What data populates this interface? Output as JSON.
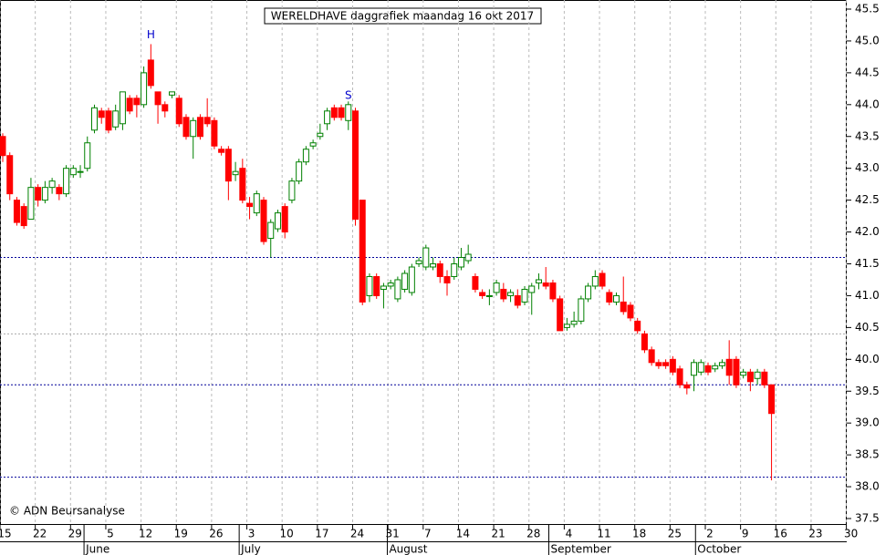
{
  "chart_data": {
    "type": "candlestick",
    "title": "WERELDHAVE daggrafiek maandag 16 okt 2017",
    "copyright": "© ADN Beursanalyse",
    "up_color": "#008000",
    "down_color": "#ff0000",
    "open": [
      43.5,
      43.2,
      42.5,
      42.4,
      42.2,
      42.7,
      42.5,
      42.7,
      42.7,
      42.6,
      42.9,
      42.95,
      43.0,
      43.6,
      43.9,
      43.9,
      43.65,
      43.7,
      44.1,
      44.1,
      44.0,
      44.7,
      44.2,
      44.0,
      44.15,
      44.1,
      43.8,
      43.5,
      43.8,
      43.8,
      43.75,
      43.3,
      43.3,
      42.9,
      43.0,
      42.45,
      42.3,
      42.5,
      41.9,
      42.05,
      42.4,
      42.5,
      42.8,
      43.1,
      43.35,
      43.5,
      43.7,
      43.95,
      43.95,
      43.75,
      43.9,
      42.5,
      41.0,
      41.3,
      41.1,
      41.15,
      40.95,
      41.1,
      41.05,
      41.5,
      41.45,
      41.45,
      41.5,
      41.3,
      41.3,
      41.45,
      41.55,
      41.3,
      41.05,
      41.0,
      41.05,
      41.1,
      41.0,
      41.0,
      40.9,
      41.05,
      41.2,
      41.2,
      41.2,
      40.95,
      40.5,
      40.55,
      40.6,
      40.95,
      41.15,
      41.35,
      41.05,
      40.9,
      40.9,
      40.85,
      40.6,
      40.4,
      40.15,
      39.95,
      39.95,
      40.0,
      39.85,
      39.6,
      39.75,
      39.8,
      39.9,
      39.85,
      39.9,
      40.0,
      40.0,
      39.75,
      39.8,
      39.7,
      39.8,
      39.6
    ],
    "high": [
      43.55,
      43.25,
      42.55,
      42.45,
      42.85,
      42.75,
      42.8,
      42.85,
      42.75,
      43.05,
      43.05,
      43.05,
      43.5,
      44.0,
      43.95,
      43.95,
      44.0,
      44.2,
      44.15,
      44.15,
      44.6,
      44.95,
      44.2,
      44.05,
      44.2,
      44.15,
      43.85,
      43.8,
      43.85,
      44.1,
      43.8,
      43.35,
      43.35,
      43.1,
      43.15,
      42.55,
      42.65,
      42.55,
      42.2,
      42.35,
      42.45,
      42.85,
      43.15,
      43.35,
      43.45,
      43.7,
      43.95,
      44.0,
      44.0,
      44.05,
      43.95,
      42.5,
      41.35,
      41.35,
      41.2,
      41.25,
      41.3,
      41.4,
      41.5,
      41.6,
      41.8,
      41.6,
      41.55,
      41.4,
      41.6,
      41.75,
      41.8,
      41.35,
      41.1,
      41.1,
      41.25,
      41.2,
      41.1,
      41.1,
      41.15,
      41.2,
      41.35,
      41.45,
      41.25,
      41.0,
      40.65,
      40.75,
      41.0,
      41.2,
      41.4,
      41.4,
      41.1,
      41.05,
      41.3,
      40.9,
      40.65,
      40.45,
      40.2,
      40.0,
      40.0,
      40.05,
      39.9,
      39.65,
      40.0,
      40.0,
      39.95,
      39.95,
      40.0,
      40.3,
      40.05,
      39.85,
      39.85,
      39.85,
      39.85,
      39.6
    ],
    "low": [
      43.1,
      42.5,
      42.1,
      42.05,
      42.2,
      42.4,
      42.45,
      42.6,
      42.5,
      42.55,
      42.85,
      42.85,
      42.95,
      43.55,
      43.7,
      43.55,
      43.6,
      43.6,
      43.85,
      43.8,
      43.95,
      44.25,
      43.7,
      43.8,
      44.1,
      43.65,
      43.45,
      43.15,
      43.45,
      43.65,
      43.3,
      43.2,
      42.5,
      42.8,
      42.45,
      42.2,
      42.25,
      41.8,
      41.6,
      42.0,
      41.9,
      42.45,
      42.75,
      43.05,
      43.3,
      43.45,
      43.6,
      43.75,
      43.75,
      43.6,
      42.1,
      40.85,
      40.9,
      40.95,
      40.8,
      41.1,
      40.9,
      41.05,
      41.0,
      41.45,
      41.4,
      41.4,
      41.2,
      41.0,
      41.25,
      41.4,
      41.5,
      41.05,
      40.95,
      40.85,
      41.0,
      40.9,
      40.9,
      40.8,
      40.85,
      40.7,
      41.1,
      41.1,
      40.9,
      40.45,
      40.45,
      40.5,
      40.55,
      40.9,
      41.1,
      41.1,
      40.85,
      40.85,
      40.7,
      40.6,
      40.4,
      40.1,
      39.9,
      39.85,
      39.85,
      39.75,
      39.55,
      39.45,
      39.5,
      39.75,
      39.75,
      39.8,
      39.85,
      39.6,
      39.55,
      39.7,
      39.5,
      39.6,
      39.55,
      38.1
    ],
    "close": [
      43.2,
      42.6,
      42.15,
      42.1,
      42.7,
      42.5,
      42.7,
      42.8,
      42.6,
      43.0,
      43.0,
      42.95,
      43.4,
      43.95,
      43.8,
      43.6,
      43.9,
      44.2,
      43.9,
      44.0,
      44.5,
      44.3,
      44.0,
      43.9,
      44.2,
      43.7,
      43.5,
      43.75,
      43.5,
      43.7,
      43.35,
      43.25,
      42.8,
      42.95,
      42.5,
      42.4,
      42.6,
      41.85,
      42.15,
      42.3,
      42.0,
      42.8,
      43.1,
      43.3,
      43.4,
      43.55,
      43.9,
      43.8,
      43.8,
      44.0,
      42.2,
      40.9,
      41.3,
      41.0,
      41.15,
      41.2,
      41.25,
      41.35,
      41.45,
      41.55,
      41.75,
      41.5,
      41.3,
      41.2,
      41.5,
      41.6,
      41.65,
      41.1,
      41.0,
      41.0,
      41.2,
      40.95,
      41.05,
      40.85,
      41.1,
      41.15,
      41.25,
      41.15,
      40.95,
      40.45,
      40.55,
      40.6,
      40.95,
      41.15,
      41.3,
      41.15,
      40.9,
      41.0,
      40.75,
      40.65,
      40.45,
      40.15,
      39.95,
      39.9,
      39.9,
      39.8,
      39.6,
      39.55,
      39.95,
      39.95,
      39.8,
      39.9,
      39.95,
      39.75,
      39.6,
      39.8,
      39.65,
      39.8,
      39.6,
      39.15
    ],
    "ylim": [
      37.5,
      45.5
    ],
    "yticks": [
      37.5,
      {
        "value": 38,
        "label": "38.0"
      },
      38.5,
      {
        "value": 39,
        "label": "39.0"
      },
      39.5,
      {
        "value": 40,
        "label": "40.0"
      },
      40.5,
      {
        "value": 41,
        "label": "41.0"
      },
      41.5,
      {
        "value": 42,
        "label": "42.0"
      },
      42.5,
      {
        "value": 43,
        "label": "43.0"
      },
      43.5,
      {
        "value": 44,
        "label": "44.0"
      },
      44.5,
      {
        "value": 45,
        "label": "45.0"
      },
      45.5
    ],
    "week_labels": [
      "15",
      "22",
      "29",
      "5",
      "12",
      "19",
      "26",
      "3",
      "10",
      "17",
      "24",
      "31",
      "7",
      "14",
      "21",
      "28",
      "4",
      "11",
      "18",
      "25",
      "2",
      "9",
      "16",
      "23",
      "30"
    ],
    "month_labels": [
      "June",
      "July",
      "August",
      "September",
      "October"
    ],
    "reference_lines": [
      {
        "value": 41.6,
        "color": "#000099"
      },
      {
        "value": 40.4,
        "color": "#aaaaaa"
      },
      {
        "value": 39.6,
        "color": "#000099"
      },
      {
        "value": 38.15,
        "color": "#000099"
      }
    ],
    "annotations": [
      {
        "text": "H",
        "x": 21,
        "y": 44.95
      },
      {
        "text": "S",
        "x": 49,
        "y": 44.0
      }
    ]
  }
}
